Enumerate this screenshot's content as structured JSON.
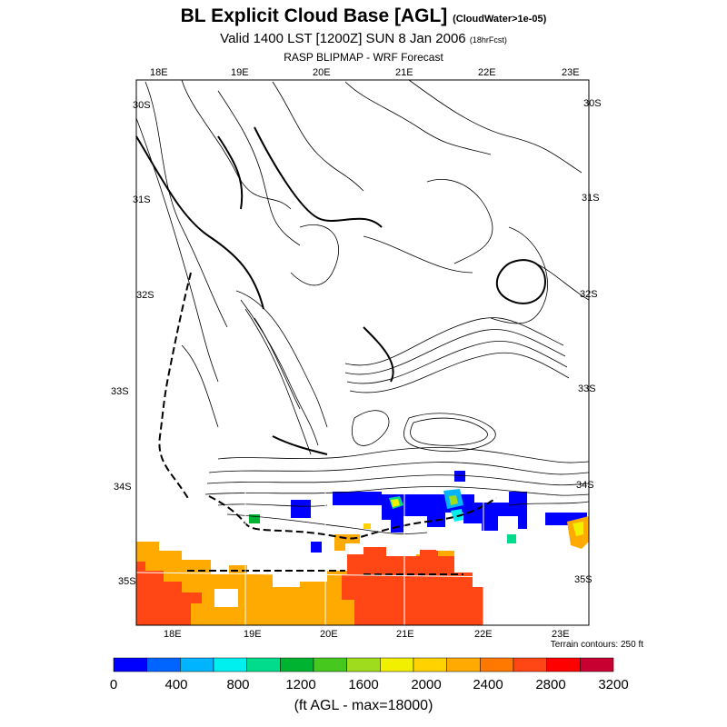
{
  "title": {
    "main": "BL Explicit Cloud Base [AGL]",
    "note": "(CloudWater>1e-05)"
  },
  "subtitle": {
    "main": "Valid 1400 LST [1200Z] SUN 8 Jan 2006",
    "note": "(18hrFcst)"
  },
  "source": "RASP BLIPMAP - WRF Forecast",
  "map": {
    "lon_labels_top": [
      "18E",
      "19E",
      "20E",
      "21E",
      "22E",
      "23E"
    ],
    "lon_labels_bottom": [
      "18E",
      "19E",
      "20E",
      "21E",
      "22E",
      "23E"
    ],
    "lat_labels_left": [
      "30S",
      "31S",
      "32S",
      "33S",
      "34S",
      "35S"
    ],
    "lat_labels_right": [
      "30S",
      "31S",
      "32S",
      "33S",
      "34S",
      "35S"
    ],
    "terrain_note": "Terrain contours: 250 ft"
  },
  "colorbar": {
    "labels": [
      "0",
      "400",
      "800",
      "1200",
      "1600",
      "2000",
      "2400",
      "2800",
      "3200"
    ],
    "colors": [
      "#0000ff",
      "#0064ff",
      "#00b4ff",
      "#00f0f0",
      "#00dc8c",
      "#00b432",
      "#46c81e",
      "#a0dc1e",
      "#f0f000",
      "#ffd200",
      "#ffaa00",
      "#ff7800",
      "#ff4614",
      "#ff0000",
      "#c80032"
    ],
    "units": "(ft AGL - max=18000)"
  }
}
